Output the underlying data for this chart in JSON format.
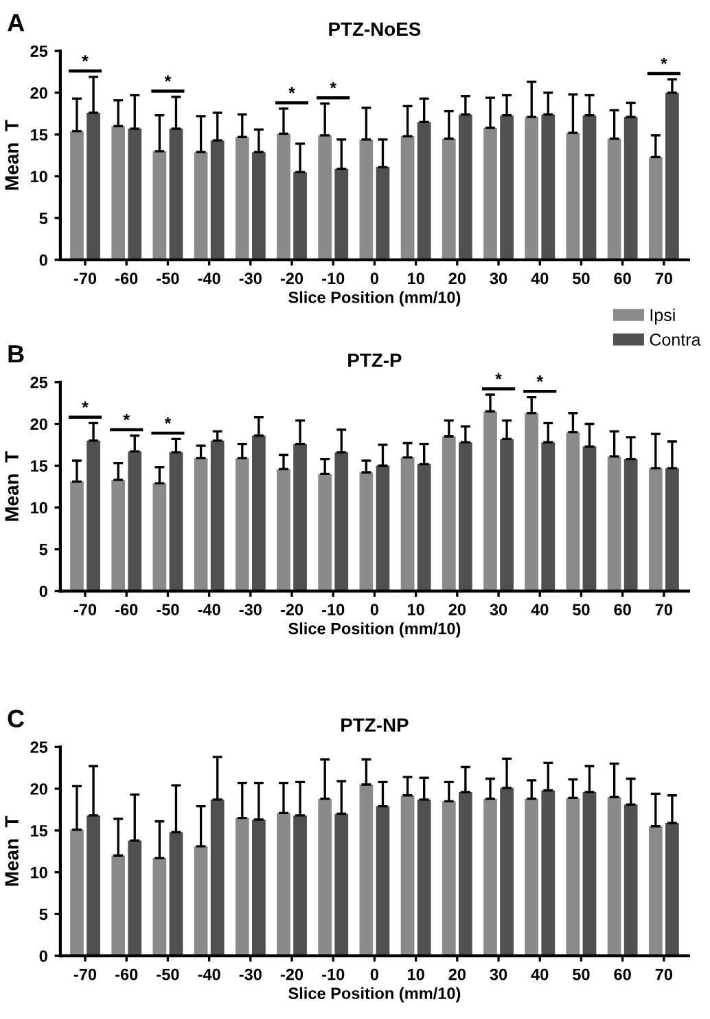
{
  "chart_data": [
    {
      "type": "bar",
      "title": "PTZ-NoES",
      "xlabel": "Slice Position (mm/10)",
      "ylabel": "Mean  T",
      "categories": [
        "-70",
        "-60",
        "-50",
        "-40",
        "-30",
        "-20",
        "-10",
        "0",
        "10",
        "20",
        "30",
        "40",
        "50",
        "60",
        "70"
      ],
      "series": [
        {
          "name": "Ipsi",
          "color": "#8a8a8a",
          "values": [
            15.4,
            16.0,
            13.0,
            12.9,
            14.7,
            15.1,
            14.9,
            14.4,
            14.8,
            14.5,
            15.8,
            17.1,
            15.2,
            14.5,
            12.3
          ],
          "errors": [
            [
              15.4,
              19.3
            ],
            [
              16.0,
              19.1
            ],
            [
              13.0,
              17.3
            ],
            [
              12.9,
              17.2
            ],
            [
              14.7,
              17.4
            ],
            [
              15.1,
              18.1
            ],
            [
              14.9,
              18.7
            ],
            [
              14.4,
              18.2
            ],
            [
              14.8,
              18.4
            ],
            [
              14.5,
              17.8
            ],
            [
              15.8,
              19.4
            ],
            [
              17.1,
              21.3
            ],
            [
              15.2,
              19.8
            ],
            [
              14.5,
              17.9
            ],
            [
              12.3,
              14.9
            ]
          ]
        },
        {
          "name": "Contra",
          "color": "#505050",
          "values": [
            17.6,
            15.7,
            15.7,
            14.3,
            12.9,
            10.5,
            10.9,
            11.1,
            16.5,
            17.4,
            17.3,
            17.4,
            17.3,
            17.1,
            20.0
          ],
          "errors": [
            [
              17.6,
              21.9
            ],
            [
              15.7,
              19.7
            ],
            [
              15.7,
              19.5
            ],
            [
              14.3,
              17.6
            ],
            [
              12.9,
              15.6
            ],
            [
              10.5,
              13.9
            ],
            [
              10.9,
              14.4
            ],
            [
              11.1,
              14.4
            ],
            [
              16.5,
              19.3
            ],
            [
              17.4,
              19.6
            ],
            [
              17.3,
              19.7
            ],
            [
              17.4,
              20.0
            ],
            [
              17.3,
              19.7
            ],
            [
              17.1,
              18.8
            ],
            [
              20.0,
              21.6
            ]
          ]
        }
      ],
      "ylim": [
        0,
        25
      ],
      "yticks": [
        0,
        5,
        10,
        15,
        20,
        25
      ],
      "grid": false,
      "legend": "bottom right",
      "annotations": [
        "A",
        {
          "text": "*",
          "x": "-70",
          "y": 17.6
        },
        {
          "text": "*",
          "x": "-50",
          "y": 15.7
        },
        {
          "text": "*",
          "x": "-20",
          "y": 15.1
        },
        {
          "text": "*",
          "x": "-10",
          "y": 14.9
        },
        {
          "text": "*",
          "x": "70",
          "y": 20.0
        }
      ]
    },
    {
      "type": "bar",
      "title": "PTZ-P",
      "xlabel": "Slice Position (mm/10)",
      "ylabel": "Mean  T",
      "categories": [
        "-70",
        "-60",
        "-50",
        "-40",
        "-30",
        "-20",
        "-10",
        "0",
        "10",
        "20",
        "30",
        "40",
        "50",
        "60",
        "70"
      ],
      "series": [
        {
          "color": "#8a8a8a",
          "values": [
            13.1,
            13.3,
            12.9,
            15.9,
            15.9,
            14.6,
            14.0,
            14.2,
            16.0,
            18.5,
            21.5,
            21.3,
            19.0,
            16.1,
            14.7
          ],
          "errors": [
            [
              13.1,
              15.6
            ],
            [
              13.3,
              15.3
            ],
            [
              12.9,
              14.8
            ],
            [
              15.9,
              17.4
            ],
            [
              15.9,
              17.6
            ],
            [
              14.6,
              16.3
            ],
            [
              14.0,
              15.8
            ],
            [
              14.2,
              15.6
            ],
            [
              16.0,
              17.7
            ],
            [
              18.5,
              20.4
            ],
            [
              21.5,
              23.5
            ],
            [
              21.3,
              23.2
            ],
            [
              19.0,
              21.3
            ],
            [
              16.1,
              19.1
            ],
            [
              14.7,
              18.8
            ]
          ]
        },
        {
          "color": "#505050",
          "values": [
            18.0,
            16.7,
            16.6,
            18.0,
            18.6,
            17.6,
            16.6,
            15.0,
            15.2,
            17.8,
            18.2,
            17.8,
            17.3,
            15.8,
            14.7
          ],
          "errors": [
            [
              18.0,
              20.1
            ],
            [
              16.7,
              18.6
            ],
            [
              16.6,
              18.2
            ],
            [
              18.0,
              19.1
            ],
            [
              18.6,
              20.8
            ],
            [
              17.6,
              20.4
            ],
            [
              16.6,
              19.3
            ],
            [
              15.0,
              17.5
            ],
            [
              15.2,
              17.6
            ],
            [
              17.8,
              19.7
            ],
            [
              18.2,
              20.4
            ],
            [
              17.8,
              20.1
            ],
            [
              17.3,
              20.0
            ],
            [
              15.8,
              18.4
            ],
            [
              14.7,
              17.9
            ]
          ]
        }
      ],
      "ylim": [
        0,
        25
      ],
      "yticks": [
        0,
        5,
        10,
        15,
        20,
        25
      ],
      "grid": false,
      "annotations": [
        "B",
        {
          "text": "*",
          "x": "-70",
          "y": 18.0
        },
        {
          "text": "*",
          "x": "-60",
          "y": 16.7
        },
        {
          "text": "*",
          "x": "-50",
          "y": 16.6
        },
        {
          "text": "*",
          "x": "30",
          "y": 21.5
        },
        {
          "text": "*",
          "x": "40",
          "y": 21.3
        }
      ]
    },
    {
      "type": "bar",
      "title": "PTZ-NP",
      "xlabel": "Slice Position (mm/10)",
      "ylabel": "Mean  T",
      "categories": [
        "-70",
        "-60",
        "-50",
        "-40",
        "-30",
        "-20",
        "-10",
        "0",
        "10",
        "20",
        "30",
        "40",
        "50",
        "60",
        "70"
      ],
      "series": [
        {
          "color": "#8a8a8a",
          "values": [
            15.1,
            12.0,
            11.7,
            13.1,
            16.5,
            17.1,
            18.8,
            20.5,
            19.2,
            18.5,
            18.8,
            18.8,
            18.9,
            19.0,
            15.5
          ],
          "errors": [
            [
              15.1,
              20.3
            ],
            [
              12.0,
              16.4
            ],
            [
              11.7,
              16.1
            ],
            [
              13.1,
              17.9
            ],
            [
              16.5,
              20.7
            ],
            [
              17.1,
              20.7
            ],
            [
              18.8,
              23.5
            ],
            [
              20.5,
              23.5
            ],
            [
              19.2,
              21.4
            ],
            [
              18.5,
              20.8
            ],
            [
              18.8,
              21.2
            ],
            [
              18.8,
              21.0
            ],
            [
              18.9,
              21.1
            ],
            [
              19.0,
              23.0
            ],
            [
              15.5,
              19.4
            ]
          ]
        },
        {
          "color": "#505050",
          "values": [
            16.8,
            13.8,
            14.8,
            18.7,
            16.3,
            16.8,
            17.0,
            17.9,
            18.7,
            19.6,
            20.1,
            19.8,
            19.6,
            18.1,
            15.9
          ],
          "errors": [
            [
              16.8,
              22.7
            ],
            [
              13.8,
              19.3
            ],
            [
              14.8,
              20.4
            ],
            [
              18.7,
              23.8
            ],
            [
              16.3,
              20.7
            ],
            [
              16.8,
              20.8
            ],
            [
              17.0,
              20.9
            ],
            [
              17.9,
              20.8
            ],
            [
              18.7,
              21.3
            ],
            [
              19.6,
              22.6
            ],
            [
              20.1,
              23.6
            ],
            [
              19.8,
              23.1
            ],
            [
              19.6,
              22.7
            ],
            [
              18.1,
              21.2
            ],
            [
              15.9,
              19.2
            ]
          ]
        }
      ],
      "ylim": [
        0,
        25
      ],
      "yticks": [
        0,
        5,
        10,
        15,
        20,
        25
      ],
      "grid": false,
      "annotations": [
        "C"
      ]
    }
  ]
}
